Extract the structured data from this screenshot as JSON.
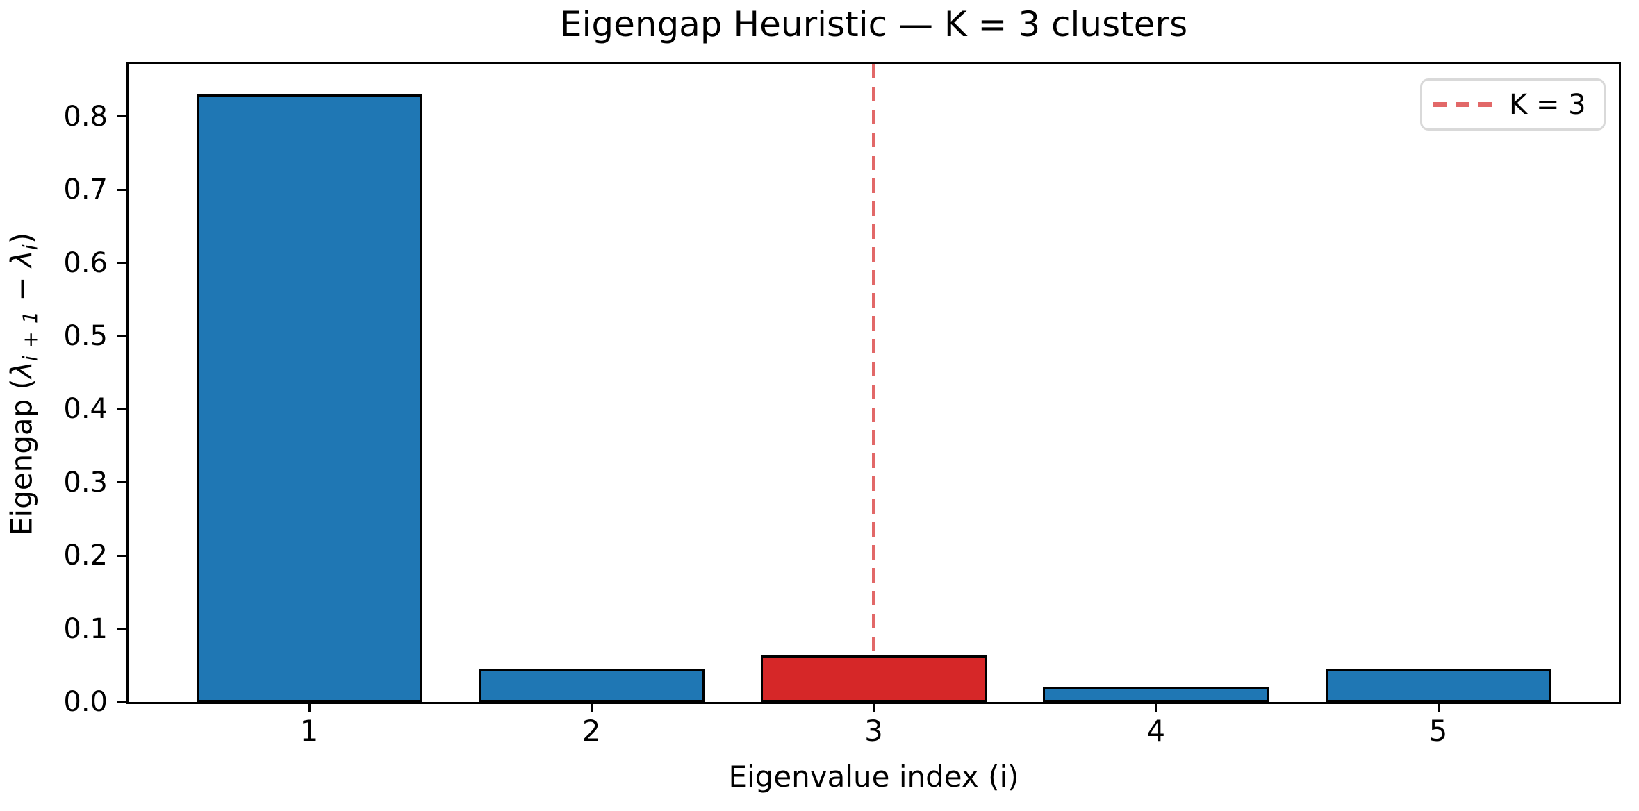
{
  "chart_data": {
    "type": "bar",
    "title": "Eigengap Heuristic — K = 3 clusters",
    "xlabel": "Eigenvalue index (i)",
    "ylabel": "Eigengap (λ_(i+1) − λ_i)",
    "ylabel_parts": {
      "pre": "Eigengap (",
      "lambda1": "λ",
      "sub1": "i + 1",
      "minus": " − ",
      "lambda2": "λ",
      "sub2": "i",
      "post": ")"
    },
    "categories": [
      "1",
      "2",
      "3",
      "4",
      "5"
    ],
    "values": [
      0.83,
      0.045,
      0.064,
      0.02,
      0.045
    ],
    "bar_color": "#1f77b4",
    "highlight_category": "3",
    "highlight_color": "#d62728",
    "bar_edge_color": "#000000",
    "xlim": [
      0.36,
      5.64
    ],
    "ylim": [
      0,
      0.872
    ],
    "bar_width": 0.8,
    "yticks": [
      0.0,
      0.1,
      0.2,
      0.3,
      0.4,
      0.5,
      0.6,
      0.7,
      0.8
    ],
    "ytick_labels": [
      "0.0",
      "0.1",
      "0.2",
      "0.3",
      "0.4",
      "0.5",
      "0.6",
      "0.7",
      "0.8"
    ],
    "grid": false,
    "vline": {
      "x": 3,
      "color": "#e26868",
      "style": "dashed",
      "label": "K = 3"
    },
    "legend": {
      "position": "upper right",
      "entries": [
        {
          "label": "K = 3",
          "marker": "dashed-line-icon",
          "color": "#e26868"
        }
      ]
    }
  }
}
